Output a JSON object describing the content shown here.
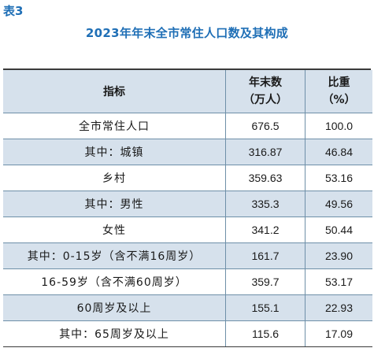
{
  "table_label": "表3",
  "title": "2023年年末全市常住人口数及其构成",
  "header": {
    "indicator": "指标",
    "count_line1": "年末数",
    "count_line2": "（万人）",
    "ratio_line1": "比重",
    "ratio_line2": "（%）"
  },
  "rows": [
    {
      "label": "全市常住人口",
      "count": "676.5",
      "ratio": "100.0"
    },
    {
      "label": "其中：城镇",
      "count": "316.87",
      "ratio": "46.84"
    },
    {
      "label": "乡村",
      "count": "359.63",
      "ratio": "53.16"
    },
    {
      "label": "其中：男性",
      "count": "335.3",
      "ratio": "49.56"
    },
    {
      "label": "女性",
      "count": "341.2",
      "ratio": "50.44"
    },
    {
      "label": "其中：0-15岁（含不满16周岁）",
      "count": "161.7",
      "ratio": "23.90"
    },
    {
      "label": "16-59岁（含不满60周岁）",
      "count": "359.7",
      "ratio": "53.17"
    },
    {
      "label": "60周岁及以上",
      "count": "155.1",
      "ratio": "22.93"
    },
    {
      "label": "其中：65周岁及以上",
      "count": "115.6",
      "ratio": "17.09"
    }
  ],
  "colors": {
    "title_blue": "#1f6fb6",
    "header_fill": "#d6e1ec",
    "rule": "#6e8fa8"
  }
}
